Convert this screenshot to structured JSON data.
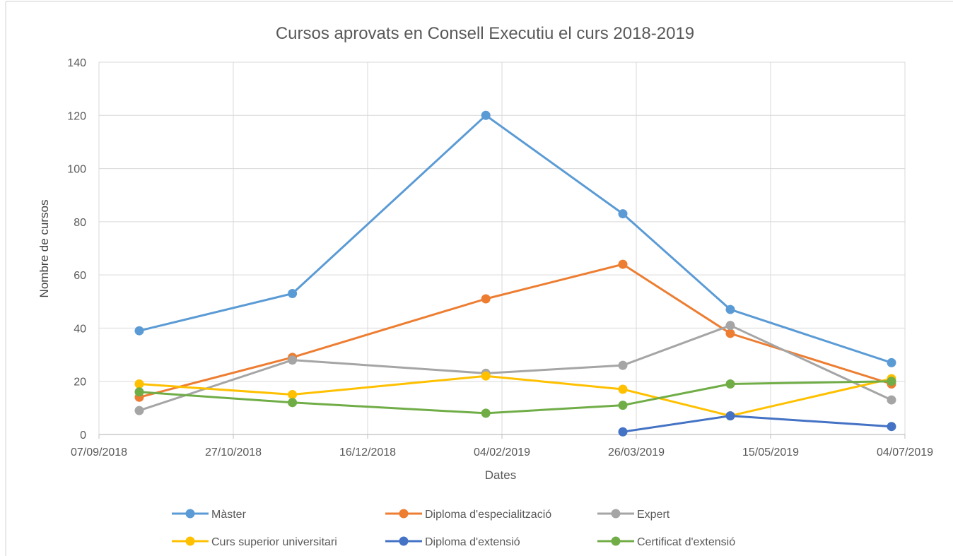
{
  "chart_data": {
    "type": "line",
    "title": "Cursos aprovats en Consell Executiu el curs 2018-2019",
    "xlabel": "Dates",
    "ylabel": "Nombre de cursos",
    "xlim": [
      "2018-09-07",
      "2019-07-04"
    ],
    "ylim": [
      0,
      140
    ],
    "x_ticks": [
      "07/09/2018",
      "27/10/2018",
      "16/12/2018",
      "04/02/2019",
      "26/03/2019",
      "15/05/2019",
      "04/07/2019"
    ],
    "y_ticks": [
      0,
      20,
      40,
      60,
      80,
      100,
      120,
      140
    ],
    "grid": true,
    "legend_position": "bottom",
    "series": [
      {
        "name": "Màster",
        "color": "#5B9BD5",
        "x": [
          "2018-09-22",
          "2018-11-18",
          "2019-01-29",
          "2019-03-21",
          "2019-04-30",
          "2019-06-29"
        ],
        "y": [
          39,
          53,
          120,
          83,
          47,
          27
        ]
      },
      {
        "name": "Diploma d'especialització",
        "color": "#ED7D31",
        "x": [
          "2018-09-22",
          "2018-11-18",
          "2019-01-29",
          "2019-03-21",
          "2019-04-30",
          "2019-06-29"
        ],
        "y": [
          14,
          29,
          51,
          64,
          38,
          19
        ]
      },
      {
        "name": "Expert",
        "color": "#A5A5A5",
        "x": [
          "2018-09-22",
          "2018-11-18",
          "2019-01-29",
          "2019-03-21",
          "2019-04-30",
          "2019-06-29"
        ],
        "y": [
          9,
          28,
          23,
          26,
          41,
          13
        ]
      },
      {
        "name": "Curs superior universitari",
        "color": "#FFC000",
        "x": [
          "2018-09-22",
          "2018-11-18",
          "2019-01-29",
          "2019-03-21",
          "2019-04-30",
          "2019-06-29"
        ],
        "y": [
          19,
          15,
          22,
          17,
          7,
          21
        ]
      },
      {
        "name": "Diploma d'extensió",
        "color": "#4472C4",
        "x": [
          "2019-03-21",
          "2019-04-30",
          "2019-06-29"
        ],
        "y": [
          1,
          7,
          3
        ]
      },
      {
        "name": "Certificat d'extensió",
        "color": "#70AD47",
        "x": [
          "2018-09-22",
          "2018-11-18",
          "2019-01-29",
          "2019-03-21",
          "2019-04-30",
          "2019-06-29"
        ],
        "y": [
          16,
          12,
          8,
          11,
          19,
          20
        ]
      }
    ]
  }
}
